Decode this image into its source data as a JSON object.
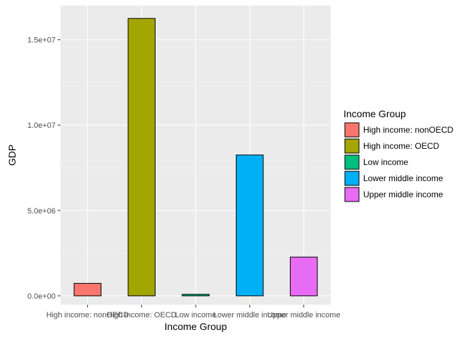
{
  "chart_data": {
    "type": "bar",
    "xlabel": "Income Group",
    "ylabel": "GDP",
    "categories": [
      "High income: nonOECD",
      "High income: OECD",
      "Low income",
      "Lower middle income",
      "Upper middle income"
    ],
    "values": [
      730000,
      16250000,
      90000,
      8250000,
      2270000
    ],
    "colors": [
      "#F8766D",
      "#A3A500",
      "#00BF7D",
      "#00B0F6",
      "#E76BF3"
    ],
    "ylim": [
      -520000,
      17000000
    ],
    "yticks": [
      0,
      5000000,
      10000000,
      15000000
    ],
    "ytick_labels": [
      "0.0e+00",
      "5.0e+06",
      "1.0e+07",
      "1.5e+07"
    ],
    "grid": true,
    "panel_background": "#EBEBEB",
    "legend": {
      "title": "Income Group",
      "position": "right",
      "entries": [
        "High income: nonOECD",
        "High income: OECD",
        "Low income",
        "Lower middle income",
        "Upper middle income"
      ]
    }
  }
}
